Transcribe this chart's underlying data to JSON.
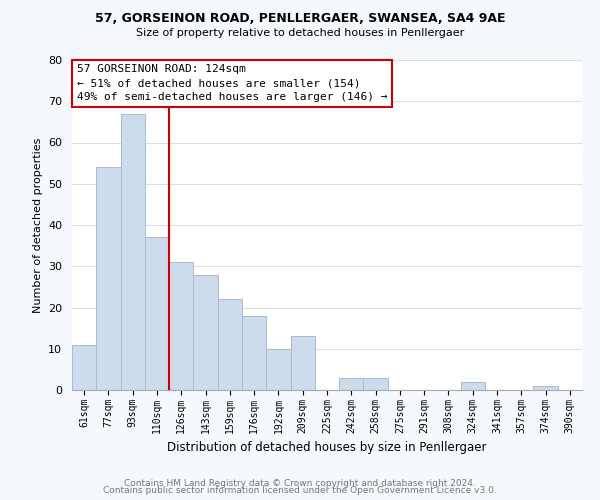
{
  "title1": "57, GORSEINON ROAD, PENLLERGAER, SWANSEA, SA4 9AE",
  "title2": "Size of property relative to detached houses in Penllergaer",
  "xlabel": "Distribution of detached houses by size in Penllergaer",
  "ylabel": "Number of detached properties",
  "bar_labels": [
    "61sqm",
    "77sqm",
    "93sqm",
    "110sqm",
    "126sqm",
    "143sqm",
    "159sqm",
    "176sqm",
    "192sqm",
    "209sqm",
    "225sqm",
    "242sqm",
    "258sqm",
    "275sqm",
    "291sqm",
    "308sqm",
    "324sqm",
    "341sqm",
    "357sqm",
    "374sqm",
    "390sqm"
  ],
  "bar_values": [
    11,
    54,
    67,
    37,
    31,
    28,
    22,
    18,
    10,
    13,
    0,
    3,
    3,
    0,
    0,
    0,
    2,
    0,
    0,
    1,
    0
  ],
  "bar_color": "#ccdcec",
  "bar_edge_color": "#aabccc",
  "highlight_color": "#cc0000",
  "ylim": [
    0,
    80
  ],
  "yticks": [
    0,
    10,
    20,
    30,
    40,
    50,
    60,
    70,
    80
  ],
  "annotation_line1": "57 GORSEINON ROAD: 124sqm",
  "annotation_line2": "← 51% of detached houses are smaller (154)",
  "annotation_line3": "49% of semi-detached houses are larger (146) →",
  "annotation_box_color": "#ffffff",
  "annotation_box_edge": "#cc0000",
  "footer1": "Contains HM Land Registry data © Crown copyright and database right 2024.",
  "footer2": "Contains public sector information licensed under the Open Government Licence v3.0.",
  "bg_color": "#ffffff",
  "fig_bg_color": "#f5f8fc"
}
